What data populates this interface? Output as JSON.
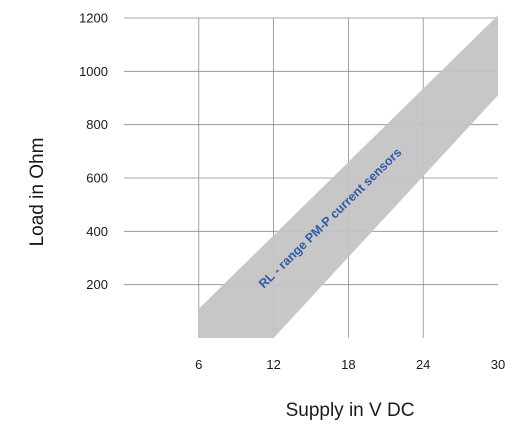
{
  "chart_data": {
    "type": "area",
    "xlabel": "Supply in V DC",
    "ylabel": "Load in Ohm",
    "xlim": [
      0,
      30
    ],
    "ylim": [
      0,
      1200
    ],
    "x_ticks": [
      6,
      12,
      18,
      24,
      30
    ],
    "y_ticks": [
      200,
      400,
      600,
      800,
      1000,
      1200
    ],
    "grid": true,
    "band_color": "#c4c4c4",
    "label_color": "#2f5aa8",
    "series": [
      {
        "name": "RL - range PM-P current sensors",
        "polygon": [
          {
            "x": 6,
            "y": 0
          },
          {
            "x": 12,
            "y": 0
          },
          {
            "x": 30,
            "y": 910
          },
          {
            "x": 30,
            "y": 1210
          },
          {
            "x": 6,
            "y": 110
          }
        ]
      }
    ]
  }
}
